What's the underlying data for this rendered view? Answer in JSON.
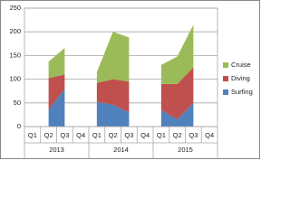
{
  "chart_data": {
    "type": "stacked-area",
    "categories": [
      "Q1",
      "Q2",
      "Q3",
      "Q4",
      "Q1",
      "Q2",
      "Q3",
      "Q4",
      "Q1",
      "Q2",
      "Q3",
      "Q4"
    ],
    "groups": [
      "2013",
      "2014",
      "2015"
    ],
    "series": [
      {
        "name": "Surfing",
        "color": "#4f81bd",
        "values": [
          null,
          35,
          80,
          null,
          52,
          46,
          30,
          null,
          35,
          15,
          50,
          null
        ]
      },
      {
        "name": "Diving",
        "color": "#c0504d",
        "values": [
          null,
          67,
          30,
          null,
          40,
          54,
          65,
          null,
          55,
          75,
          75,
          null
        ]
      },
      {
        "name": "Cruise",
        "color": "#9bbb59",
        "values": [
          null,
          35,
          56,
          null,
          23,
          100,
          93,
          null,
          40,
          58,
          90,
          null
        ]
      }
    ],
    "ylim": [
      0,
      250
    ],
    "yticks": [
      0,
      50,
      100,
      150,
      200,
      250
    ],
    "grid": true,
    "legend": "right"
  }
}
